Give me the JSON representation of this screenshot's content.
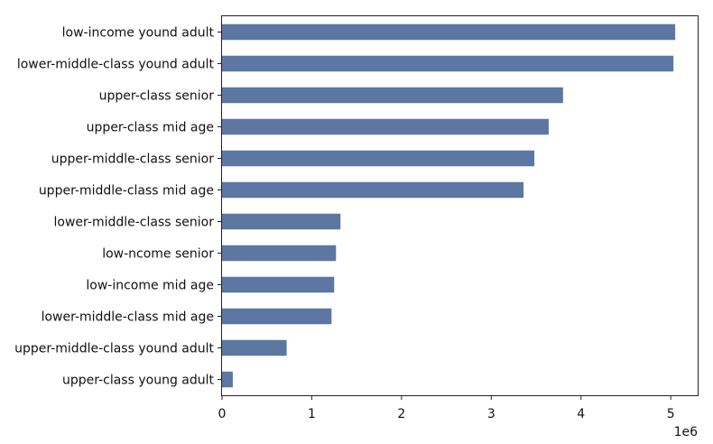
{
  "chart_data": {
    "type": "bar",
    "orientation": "horizontal",
    "categories": [
      "low-income yound adult",
      "lower-middle-class yound adult",
      "upper-class senior",
      "upper-class mid age",
      "upper-middle-class senior",
      "upper-middle-class mid age",
      "lower-middle-class senior",
      "low-ncome senior",
      "low-income mid age",
      "lower-middle-class mid age",
      "upper-middle-class yound adult",
      "upper-class young adult"
    ],
    "values": [
      5050000,
      5030000,
      3800000,
      3640000,
      3480000,
      3360000,
      1320000,
      1270000,
      1250000,
      1220000,
      720000,
      120000
    ],
    "title": "",
    "xlabel": "",
    "ylabel": "",
    "xlim": [
      0,
      5300000
    ],
    "xticks": [
      0,
      1,
      2,
      3,
      4,
      5
    ],
    "xtick_labels": [
      "0",
      "1",
      "2",
      "3",
      "4",
      "5"
    ],
    "x_scale_label": "1e6",
    "grid": false,
    "bar_color": "#5b77a2"
  }
}
